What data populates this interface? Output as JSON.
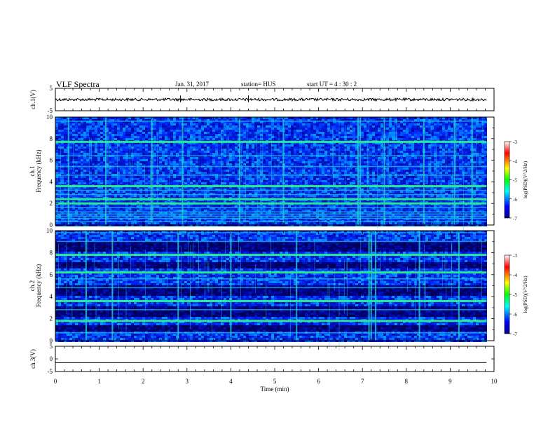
{
  "header": {
    "title": "VLF Spectra",
    "date": "Jan. 31, 2017",
    "station": "station= HUS",
    "start": "start UT =  4 : 30 : 2"
  },
  "chart_data": [
    {
      "type": "line",
      "name": "ch1-waveform",
      "ylabel": "ch.1(V)",
      "ylim": [
        -5,
        5
      ],
      "yticks": [
        5,
        -5
      ],
      "xlim": [
        0,
        10
      ],
      "x_end": 9.83,
      "level": 0,
      "noise_amplitude": 0.6,
      "line_color": "#000000"
    },
    {
      "type": "heatmap",
      "name": "ch1-spectrogram",
      "ylabel": "ch.1",
      "ylabel2": "Frequency (kHz)",
      "ylim": [
        0,
        10
      ],
      "yticks": [
        0,
        2,
        4,
        6,
        8,
        10
      ],
      "xlim": [
        0,
        10
      ],
      "x_end": 9.83,
      "bands_khz": [
        0.3,
        0.6,
        0.8,
        1.0,
        1.2,
        1.6,
        2.0,
        2.4,
        2.8,
        3.2,
        3.6,
        4.6,
        5.4,
        6.4,
        7.7,
        9.6
      ],
      "bright_bands_khz": [
        2.0,
        2.4,
        3.6,
        7.7
      ],
      "burst_times_min": [
        0.3,
        1.15,
        2.2,
        2.9,
        4.2,
        5.2,
        6.9,
        6.95,
        7.5,
        8.4,
        9.1,
        9.5
      ],
      "colorbar": {
        "label": "log(PSD)(V^2/Hz)",
        "ticks": [
          -3,
          -4,
          -5,
          -6,
          -7
        ],
        "range": [
          -7,
          -3
        ]
      }
    },
    {
      "type": "heatmap",
      "name": "ch2-spectrogram",
      "ylabel": "ch.2",
      "ylabel2": "Frequency (kHz)",
      "ylim": [
        0,
        10
      ],
      "yticks": [
        0,
        2,
        4,
        6,
        8,
        10
      ],
      "xlim": [
        0,
        10
      ],
      "x_end": 9.83,
      "bands_khz": [
        0.7,
        1.8,
        2.8,
        3.6,
        4.8,
        5.6,
        6.2,
        7.8,
        9.0,
        9.8
      ],
      "bright_bands_khz": [
        1.8,
        3.6,
        6.2,
        7.8
      ],
      "dark_bands_khz": [
        [
          1.0,
          1.5
        ],
        [
          2.3,
          3.2
        ],
        [
          4.2,
          5.2
        ],
        [
          6.6,
          7.3
        ],
        [
          8.2,
          9.2
        ]
      ],
      "burst_times_min": [
        0.7,
        1.3,
        2.8,
        4.0,
        5.5,
        7.15,
        7.2,
        7.3,
        8.3,
        9.2
      ],
      "colorbar": {
        "label": "log(PSD)(V^2/Hz)",
        "ticks": [
          -3,
          -4,
          -5,
          -6,
          -7
        ],
        "range": [
          -7,
          -3
        ]
      }
    },
    {
      "type": "line",
      "name": "ch3-waveform",
      "ylabel": "ch.3(V)",
      "ylim": [
        -5,
        5
      ],
      "yticks": [
        5,
        0,
        -5
      ],
      "xlim": [
        0,
        10
      ],
      "x_end": 9.83,
      "level": -1.5,
      "noise_amplitude": 0,
      "line_color": "#000000"
    }
  ],
  "xaxis": {
    "label": "Time (min)",
    "ticks": [
      0,
      1,
      2,
      3,
      4,
      5,
      6,
      7,
      8,
      9,
      10
    ]
  }
}
